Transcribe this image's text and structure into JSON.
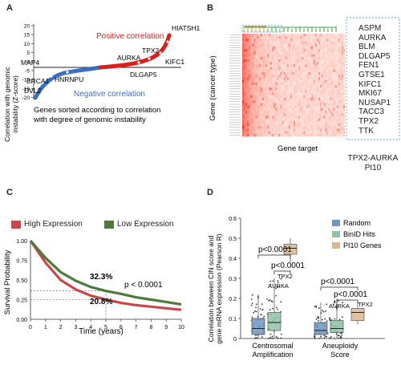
{
  "panel_labels": {
    "a": "A",
    "b": "B",
    "c": "C",
    "d": "D"
  },
  "panel_a": {
    "ylabel_line1": "Correlation with genomic",
    "ylabel_line2": "instability (Z-score)",
    "yticks": [
      "20",
      "15",
      "10",
      "5",
      "0",
      "-5",
      "-10",
      "-15",
      "-20"
    ],
    "positive_label": "Positive correlation",
    "negative_label": "Negative correlation",
    "caption_line1": "Genes sorted according to correlation",
    "caption_line2": "with degree of genomic instability",
    "genes": [
      "HIATSH1",
      "TPX2",
      "AURKA",
      "KIFC1",
      "DLGAP5",
      "MAP4",
      "BRCA1",
      "DVL2",
      "HNRNPU"
    ],
    "colors": {
      "positive": "#d9201c",
      "negative": "#3a6fc2"
    }
  },
  "panel_b": {
    "ylabel": "Gene (cancer type)",
    "xlabel": "Gene target",
    "genes": [
      "ASPM",
      "AURKA",
      "BLM",
      "DLGAP5",
      "FEN1",
      "GTSE1",
      "KIFC1",
      "MKI67",
      "NUSAP1",
      "TACC3",
      "TPX2",
      "TTK"
    ],
    "caption_line1": "TPX2-AURKA",
    "caption_line2": "PI10"
  },
  "panel_c": {
    "legend": [
      "High Expression",
      "Low Expression"
    ],
    "colors": {
      "high": "#c8474b",
      "low": "#4d7a3a"
    },
    "ylabel": "Survival Probability",
    "xlabel": "Time (years)",
    "yticks": [
      "1.00",
      "0.75",
      "0.50",
      "0.25",
      "0.00"
    ],
    "xticks": [
      "0",
      "1",
      "2",
      "3",
      "4",
      "5",
      "6",
      "7",
      "8",
      "9",
      "10"
    ],
    "annot_low": "32.3%",
    "annot_high": "20.8%",
    "pvalue": "p < 0.0001"
  },
  "panel_d": {
    "ylabel_line1": "Correlation between CIN score and",
    "ylabel_line2": "gene mRNA expression (Pearson R)",
    "yticks": [
      "0.6",
      "0.5",
      "0.4",
      "0.3",
      "0.2",
      "0.1",
      "0"
    ],
    "legend": [
      "Random",
      "BinID Hits",
      "PI10 Genes"
    ],
    "colors": {
      "random": "#6f95c1",
      "binid": "#8fc2a8",
      "pi10": "#d8b98f"
    },
    "groups": [
      "Centrosomal",
      "Amplification",
      "Aneuploidy",
      "Score"
    ],
    "pvalues": [
      "p<0.0001",
      "p<0.0001",
      "p<0.0001",
      "p<0.0001"
    ],
    "gene_labels": [
      "TPX2",
      "AURKA",
      "AURKA",
      "TPX2"
    ]
  },
  "chart_data": [
    {
      "type": "line",
      "panel": "C",
      "xlabel": "Time (years)",
      "ylabel": "Survival Probability",
      "xlim": [
        0,
        10
      ],
      "ylim": [
        0,
        1
      ],
      "x": [
        0,
        1,
        2,
        3,
        4,
        5,
        6,
        7,
        8,
        9,
        10
      ],
      "series": [
        {
          "name": "High Expression",
          "values": [
            1.0,
            0.72,
            0.5,
            0.38,
            0.3,
            0.25,
            0.208,
            0.18,
            0.16,
            0.14,
            0.12
          ]
        },
        {
          "name": "Low Expression",
          "values": [
            1.0,
            0.78,
            0.6,
            0.49,
            0.41,
            0.36,
            0.323,
            0.28,
            0.25,
            0.22,
            0.19
          ]
        }
      ]
    },
    {
      "type": "box",
      "panel": "D",
      "ylabel": "Correlation between CIN score and gene mRNA expression (Pearson R)",
      "ylim": [
        0,
        0.6
      ],
      "categories": [
        "Centrosomal Amplification",
        "Aneuploidy Score"
      ],
      "series": [
        {
          "name": "Random",
          "values": [
            {
              "q1": 0.02,
              "median": 0.05,
              "q3": 0.1,
              "min": 0,
              "max": 0.22
            },
            {
              "q1": 0.02,
              "median": 0.04,
              "q3": 0.08,
              "min": 0,
              "max": 0.18
            }
          ]
        },
        {
          "name": "BinID Hits",
          "values": [
            {
              "q1": 0.04,
              "median": 0.08,
              "q3": 0.13,
              "min": 0,
              "max": 0.3
            },
            {
              "q1": 0.03,
              "median": 0.05,
              "q3": 0.09,
              "min": 0,
              "max": 0.2
            }
          ]
        },
        {
          "name": "PI10 Genes",
          "values": [
            {
              "q1": 0.42,
              "median": 0.45,
              "q3": 0.47,
              "min": 0.38,
              "max": 0.5
            },
            {
              "q1": 0.09,
              "median": 0.13,
              "q3": 0.15,
              "min": 0.07,
              "max": 0.18
            }
          ]
        }
      ]
    }
  ]
}
